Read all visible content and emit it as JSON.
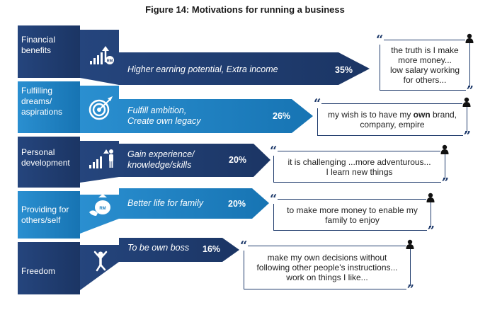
{
  "title": "Figure 14: Motivations for running a business",
  "rows": [
    {
      "category": [
        "Financial",
        "benefits"
      ],
      "description": [
        "Higher earning potential, Extra income"
      ],
      "percent": "35%",
      "quote": [
        "the truth is I make",
        "more money...",
        "low salary working",
        "for others..."
      ],
      "icon": "growth-chart-money-icon",
      "color": "#1e3a6b"
    },
    {
      "category": [
        "Fulfilling",
        "dreams/",
        "aspirations"
      ],
      "description": [
        "Fulfill ambition,",
        "Create own legacy"
      ],
      "percent": "26%",
      "quote_parts": [
        "my wish is to have my ",
        "own",
        " brand,"
      ],
      "quote_line2": "company, empire",
      "icon": "target-icon",
      "color": "#1b7fc0"
    },
    {
      "category": [
        "Personal",
        "development"
      ],
      "description": [
        "Gain experience/",
        "knowledge/skills"
      ],
      "percent": "20%",
      "quote": [
        "it is challenging ...more adventurous...",
        "I learn new things"
      ],
      "icon": "growth-chart-person-icon",
      "color": "#1e3a6b"
    },
    {
      "category": [
        "Providing for",
        "others/self"
      ],
      "description": [
        "Better life for family"
      ],
      "percent": "20%",
      "quote": [
        "to make more money to enable my",
        "family to enjoy"
      ],
      "icon": "money-bag-icon",
      "color": "#1b7fc0"
    },
    {
      "category": [
        "Freedom"
      ],
      "description": [
        "To be own boss"
      ],
      "percent": "16%",
      "quote": [
        "make my own decisions without",
        "following other people's instructions...",
        "work on things I like..."
      ],
      "icon": "celebrating-person-icon",
      "color": "#1e3a6b"
    }
  ],
  "colors": {
    "dark_blue": "#1e3a6b",
    "light_blue": "#1b7fc0",
    "quote_border": "#1e3a6b"
  }
}
